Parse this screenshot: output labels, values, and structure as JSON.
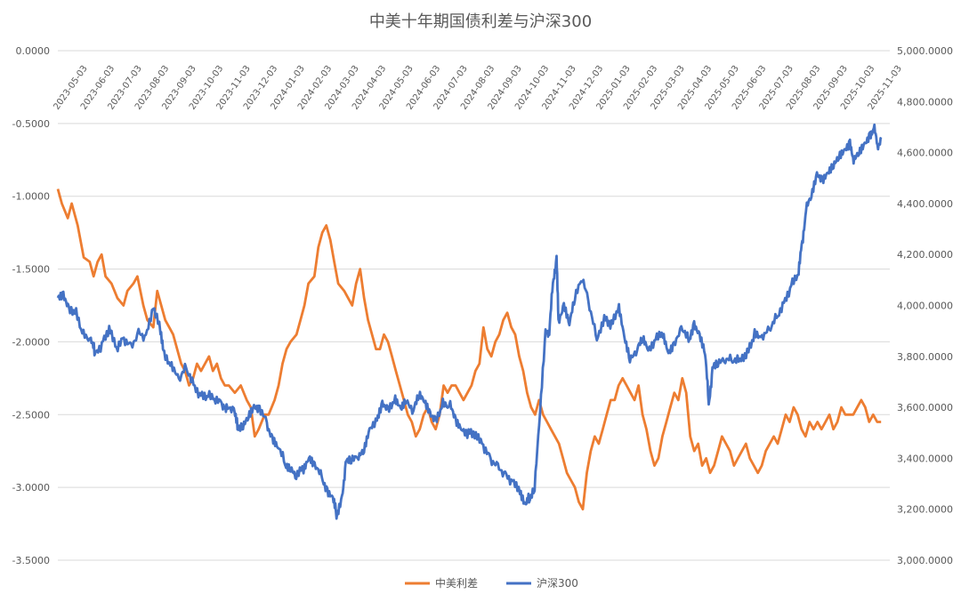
{
  "chart_data": {
    "type": "line",
    "title": "中美十年期国债利差与沪深300",
    "x_tick_labels": [
      "2023-05-03",
      "2023-06-03",
      "2023-07-03",
      "2023-08-03",
      "2023-09-03",
      "2023-10-03",
      "2023-11-03",
      "2023-12-03",
      "2024-01-03",
      "2024-02-03",
      "2024-03-03",
      "2024-04-03",
      "2024-05-03",
      "2024-06-03",
      "2024-07-03",
      "2024-08-03",
      "2024-09-03",
      "2024-10-03",
      "2024-11-03",
      "2024-12-03",
      "2025-01-03",
      "2025-02-03",
      "2025-03-03",
      "2025-04-03",
      "2025-05-03",
      "2025-06-03",
      "2025-07-03",
      "2025-08-03",
      "2025-09-03",
      "2025-10-03",
      "2025-11-03"
    ],
    "left_axis": {
      "min": -3.5,
      "max": 0.0,
      "step": 0.5,
      "tick_labels": [
        "0.0000",
        "-0.5000",
        "-1.0000",
        "-1.5000",
        "-2.0000",
        "-2.5000",
        "-3.0000",
        "-3.5000"
      ]
    },
    "right_axis": {
      "min": 3000,
      "max": 5000,
      "step": 200,
      "tick_labels": [
        "5,000.0000",
        "4,800.0000",
        "4,600.0000",
        "4,400.0000",
        "4,200.0000",
        "4,000.0000",
        "3,800.0000",
        "3,600.0000",
        "3,400.0000",
        "3,200.0000",
        "3,000.0000"
      ]
    },
    "gridlines": true,
    "legend_position": "bottom",
    "series": [
      {
        "name": "中美利差",
        "axis": "left",
        "color": "#ED7D31",
        "points": [
          [
            0,
            -0.95
          ],
          [
            0.1,
            -1.05
          ],
          [
            0.25,
            -1.15
          ],
          [
            0.35,
            -1.05
          ],
          [
            0.5,
            -1.2
          ],
          [
            0.65,
            -1.42
          ],
          [
            0.8,
            -1.45
          ],
          [
            0.9,
            -1.55
          ],
          [
            1.0,
            -1.45
          ],
          [
            1.1,
            -1.4
          ],
          [
            1.2,
            -1.55
          ],
          [
            1.35,
            -1.6
          ],
          [
            1.5,
            -1.7
          ],
          [
            1.65,
            -1.75
          ],
          [
            1.75,
            -1.65
          ],
          [
            1.9,
            -1.6
          ],
          [
            2.0,
            -1.55
          ],
          [
            2.15,
            -1.75
          ],
          [
            2.25,
            -1.85
          ],
          [
            2.4,
            -1.9
          ],
          [
            2.5,
            -1.65
          ],
          [
            2.6,
            -1.75
          ],
          [
            2.7,
            -1.85
          ],
          [
            2.8,
            -1.9
          ],
          [
            2.9,
            -1.95
          ],
          [
            3.0,
            -2.05
          ],
          [
            3.1,
            -2.15
          ],
          [
            3.2,
            -2.2
          ],
          [
            3.3,
            -2.3
          ],
          [
            3.4,
            -2.25
          ],
          [
            3.5,
            -2.15
          ],
          [
            3.6,
            -2.2
          ],
          [
            3.7,
            -2.15
          ],
          [
            3.8,
            -2.1
          ],
          [
            3.9,
            -2.2
          ],
          [
            4.0,
            -2.15
          ],
          [
            4.1,
            -2.25
          ],
          [
            4.2,
            -2.3
          ],
          [
            4.3,
            -2.3
          ],
          [
            4.45,
            -2.35
          ],
          [
            4.6,
            -2.3
          ],
          [
            4.75,
            -2.4
          ],
          [
            4.85,
            -2.45
          ],
          [
            4.95,
            -2.65
          ],
          [
            5.05,
            -2.6
          ],
          [
            5.2,
            -2.5
          ],
          [
            5.3,
            -2.5
          ],
          [
            5.45,
            -2.4
          ],
          [
            5.55,
            -2.3
          ],
          [
            5.65,
            -2.15
          ],
          [
            5.75,
            -2.05
          ],
          [
            5.85,
            -2.0
          ],
          [
            6.0,
            -1.95
          ],
          [
            6.1,
            -1.85
          ],
          [
            6.2,
            -1.75
          ],
          [
            6.3,
            -1.6
          ],
          [
            6.45,
            -1.55
          ],
          [
            6.55,
            -1.35
          ],
          [
            6.65,
            -1.25
          ],
          [
            6.75,
            -1.2
          ],
          [
            6.85,
            -1.3
          ],
          [
            6.95,
            -1.45
          ],
          [
            7.05,
            -1.6
          ],
          [
            7.2,
            -1.65
          ],
          [
            7.3,
            -1.7
          ],
          [
            7.4,
            -1.75
          ],
          [
            7.5,
            -1.6
          ],
          [
            7.6,
            -1.5
          ],
          [
            7.7,
            -1.7
          ],
          [
            7.8,
            -1.85
          ],
          [
            7.9,
            -1.95
          ],
          [
            8.0,
            -2.05
          ],
          [
            8.1,
            -2.05
          ],
          [
            8.2,
            -1.95
          ],
          [
            8.3,
            -2.0
          ],
          [
            8.4,
            -2.1
          ],
          [
            8.5,
            -2.2
          ],
          [
            8.6,
            -2.3
          ],
          [
            8.7,
            -2.4
          ],
          [
            8.8,
            -2.5
          ],
          [
            8.9,
            -2.55
          ],
          [
            9.0,
            -2.65
          ],
          [
            9.1,
            -2.6
          ],
          [
            9.2,
            -2.5
          ],
          [
            9.3,
            -2.45
          ],
          [
            9.4,
            -2.55
          ],
          [
            9.5,
            -2.6
          ],
          [
            9.6,
            -2.5
          ],
          [
            9.7,
            -2.3
          ],
          [
            9.8,
            -2.35
          ],
          [
            9.9,
            -2.3
          ],
          [
            10.0,
            -2.3
          ],
          [
            10.1,
            -2.35
          ],
          [
            10.2,
            -2.4
          ],
          [
            10.3,
            -2.35
          ],
          [
            10.4,
            -2.3
          ],
          [
            10.5,
            -2.2
          ],
          [
            10.6,
            -2.15
          ],
          [
            10.7,
            -1.9
          ],
          [
            10.8,
            -2.05
          ],
          [
            10.9,
            -2.1
          ],
          [
            11.0,
            -2.0
          ],
          [
            11.1,
            -1.95
          ],
          [
            11.2,
            -1.85
          ],
          [
            11.3,
            -1.8
          ],
          [
            11.4,
            -1.9
          ],
          [
            11.5,
            -1.95
          ],
          [
            11.6,
            -2.1
          ],
          [
            11.7,
            -2.2
          ],
          [
            11.8,
            -2.35
          ],
          [
            11.9,
            -2.45
          ],
          [
            12.0,
            -2.5
          ],
          [
            12.1,
            -2.4
          ],
          [
            12.2,
            -2.5
          ],
          [
            12.3,
            -2.55
          ],
          [
            12.4,
            -2.6
          ],
          [
            12.5,
            -2.65
          ],
          [
            12.6,
            -2.7
          ],
          [
            12.7,
            -2.8
          ],
          [
            12.8,
            -2.9
          ],
          [
            12.9,
            -2.95
          ],
          [
            13.0,
            -3.0
          ],
          [
            13.1,
            -3.1
          ],
          [
            13.2,
            -3.15
          ],
          [
            13.3,
            -2.9
          ],
          [
            13.4,
            -2.75
          ],
          [
            13.5,
            -2.65
          ],
          [
            13.6,
            -2.7
          ],
          [
            13.7,
            -2.6
          ],
          [
            13.8,
            -2.5
          ],
          [
            13.9,
            -2.4
          ],
          [
            14.0,
            -2.4
          ],
          [
            14.1,
            -2.3
          ],
          [
            14.2,
            -2.25
          ],
          [
            14.3,
            -2.3
          ],
          [
            14.4,
            -2.35
          ],
          [
            14.5,
            -2.4
          ],
          [
            14.6,
            -2.3
          ],
          [
            14.7,
            -2.5
          ],
          [
            14.8,
            -2.6
          ],
          [
            14.9,
            -2.75
          ],
          [
            15.0,
            -2.85
          ],
          [
            15.1,
            -2.8
          ],
          [
            15.2,
            -2.65
          ],
          [
            15.3,
            -2.55
          ],
          [
            15.4,
            -2.45
          ],
          [
            15.5,
            -2.35
          ],
          [
            15.6,
            -2.4
          ],
          [
            15.7,
            -2.25
          ],
          [
            15.8,
            -2.35
          ],
          [
            15.9,
            -2.65
          ],
          [
            16.0,
            -2.75
          ],
          [
            16.1,
            -2.7
          ],
          [
            16.2,
            -2.85
          ],
          [
            16.3,
            -2.8
          ],
          [
            16.4,
            -2.9
          ],
          [
            16.5,
            -2.85
          ],
          [
            16.6,
            -2.75
          ],
          [
            16.7,
            -2.65
          ],
          [
            16.8,
            -2.7
          ],
          [
            16.9,
            -2.75
          ],
          [
            17.0,
            -2.85
          ],
          [
            17.1,
            -2.8
          ],
          [
            17.2,
            -2.75
          ],
          [
            17.3,
            -2.7
          ],
          [
            17.4,
            -2.8
          ],
          [
            17.5,
            -2.85
          ],
          [
            17.6,
            -2.9
          ],
          [
            17.7,
            -2.85
          ],
          [
            17.8,
            -2.75
          ],
          [
            17.9,
            -2.7
          ],
          [
            18.0,
            -2.65
          ],
          [
            18.1,
            -2.7
          ],
          [
            18.2,
            -2.6
          ],
          [
            18.3,
            -2.5
          ],
          [
            18.4,
            -2.55
          ],
          [
            18.5,
            -2.45
          ],
          [
            18.6,
            -2.5
          ],
          [
            18.7,
            -2.6
          ],
          [
            18.8,
            -2.65
          ],
          [
            18.9,
            -2.55
          ],
          [
            19.0,
            -2.6
          ],
          [
            19.1,
            -2.55
          ],
          [
            19.2,
            -2.6
          ],
          [
            19.3,
            -2.55
          ],
          [
            19.4,
            -2.5
          ],
          [
            19.5,
            -2.6
          ],
          [
            19.6,
            -2.55
          ],
          [
            19.7,
            -2.45
          ],
          [
            19.8,
            -2.5
          ],
          [
            19.9,
            -2.5
          ],
          [
            20.0,
            -2.5
          ],
          [
            20.1,
            -2.45
          ],
          [
            20.2,
            -2.4
          ],
          [
            20.3,
            -2.45
          ],
          [
            20.4,
            -2.55
          ],
          [
            20.5,
            -2.5
          ],
          [
            20.6,
            -2.55
          ],
          [
            20.7,
            -2.55
          ]
        ]
      },
      {
        "name": "沪深300",
        "axis": "right",
        "color": "#4472C4",
        "points": []
      }
    ]
  },
  "legend": {
    "items": [
      {
        "label": "中美利差",
        "color": "#ED7D31"
      },
      {
        "label": "沪深300",
        "color": "#4472C4"
      }
    ]
  }
}
